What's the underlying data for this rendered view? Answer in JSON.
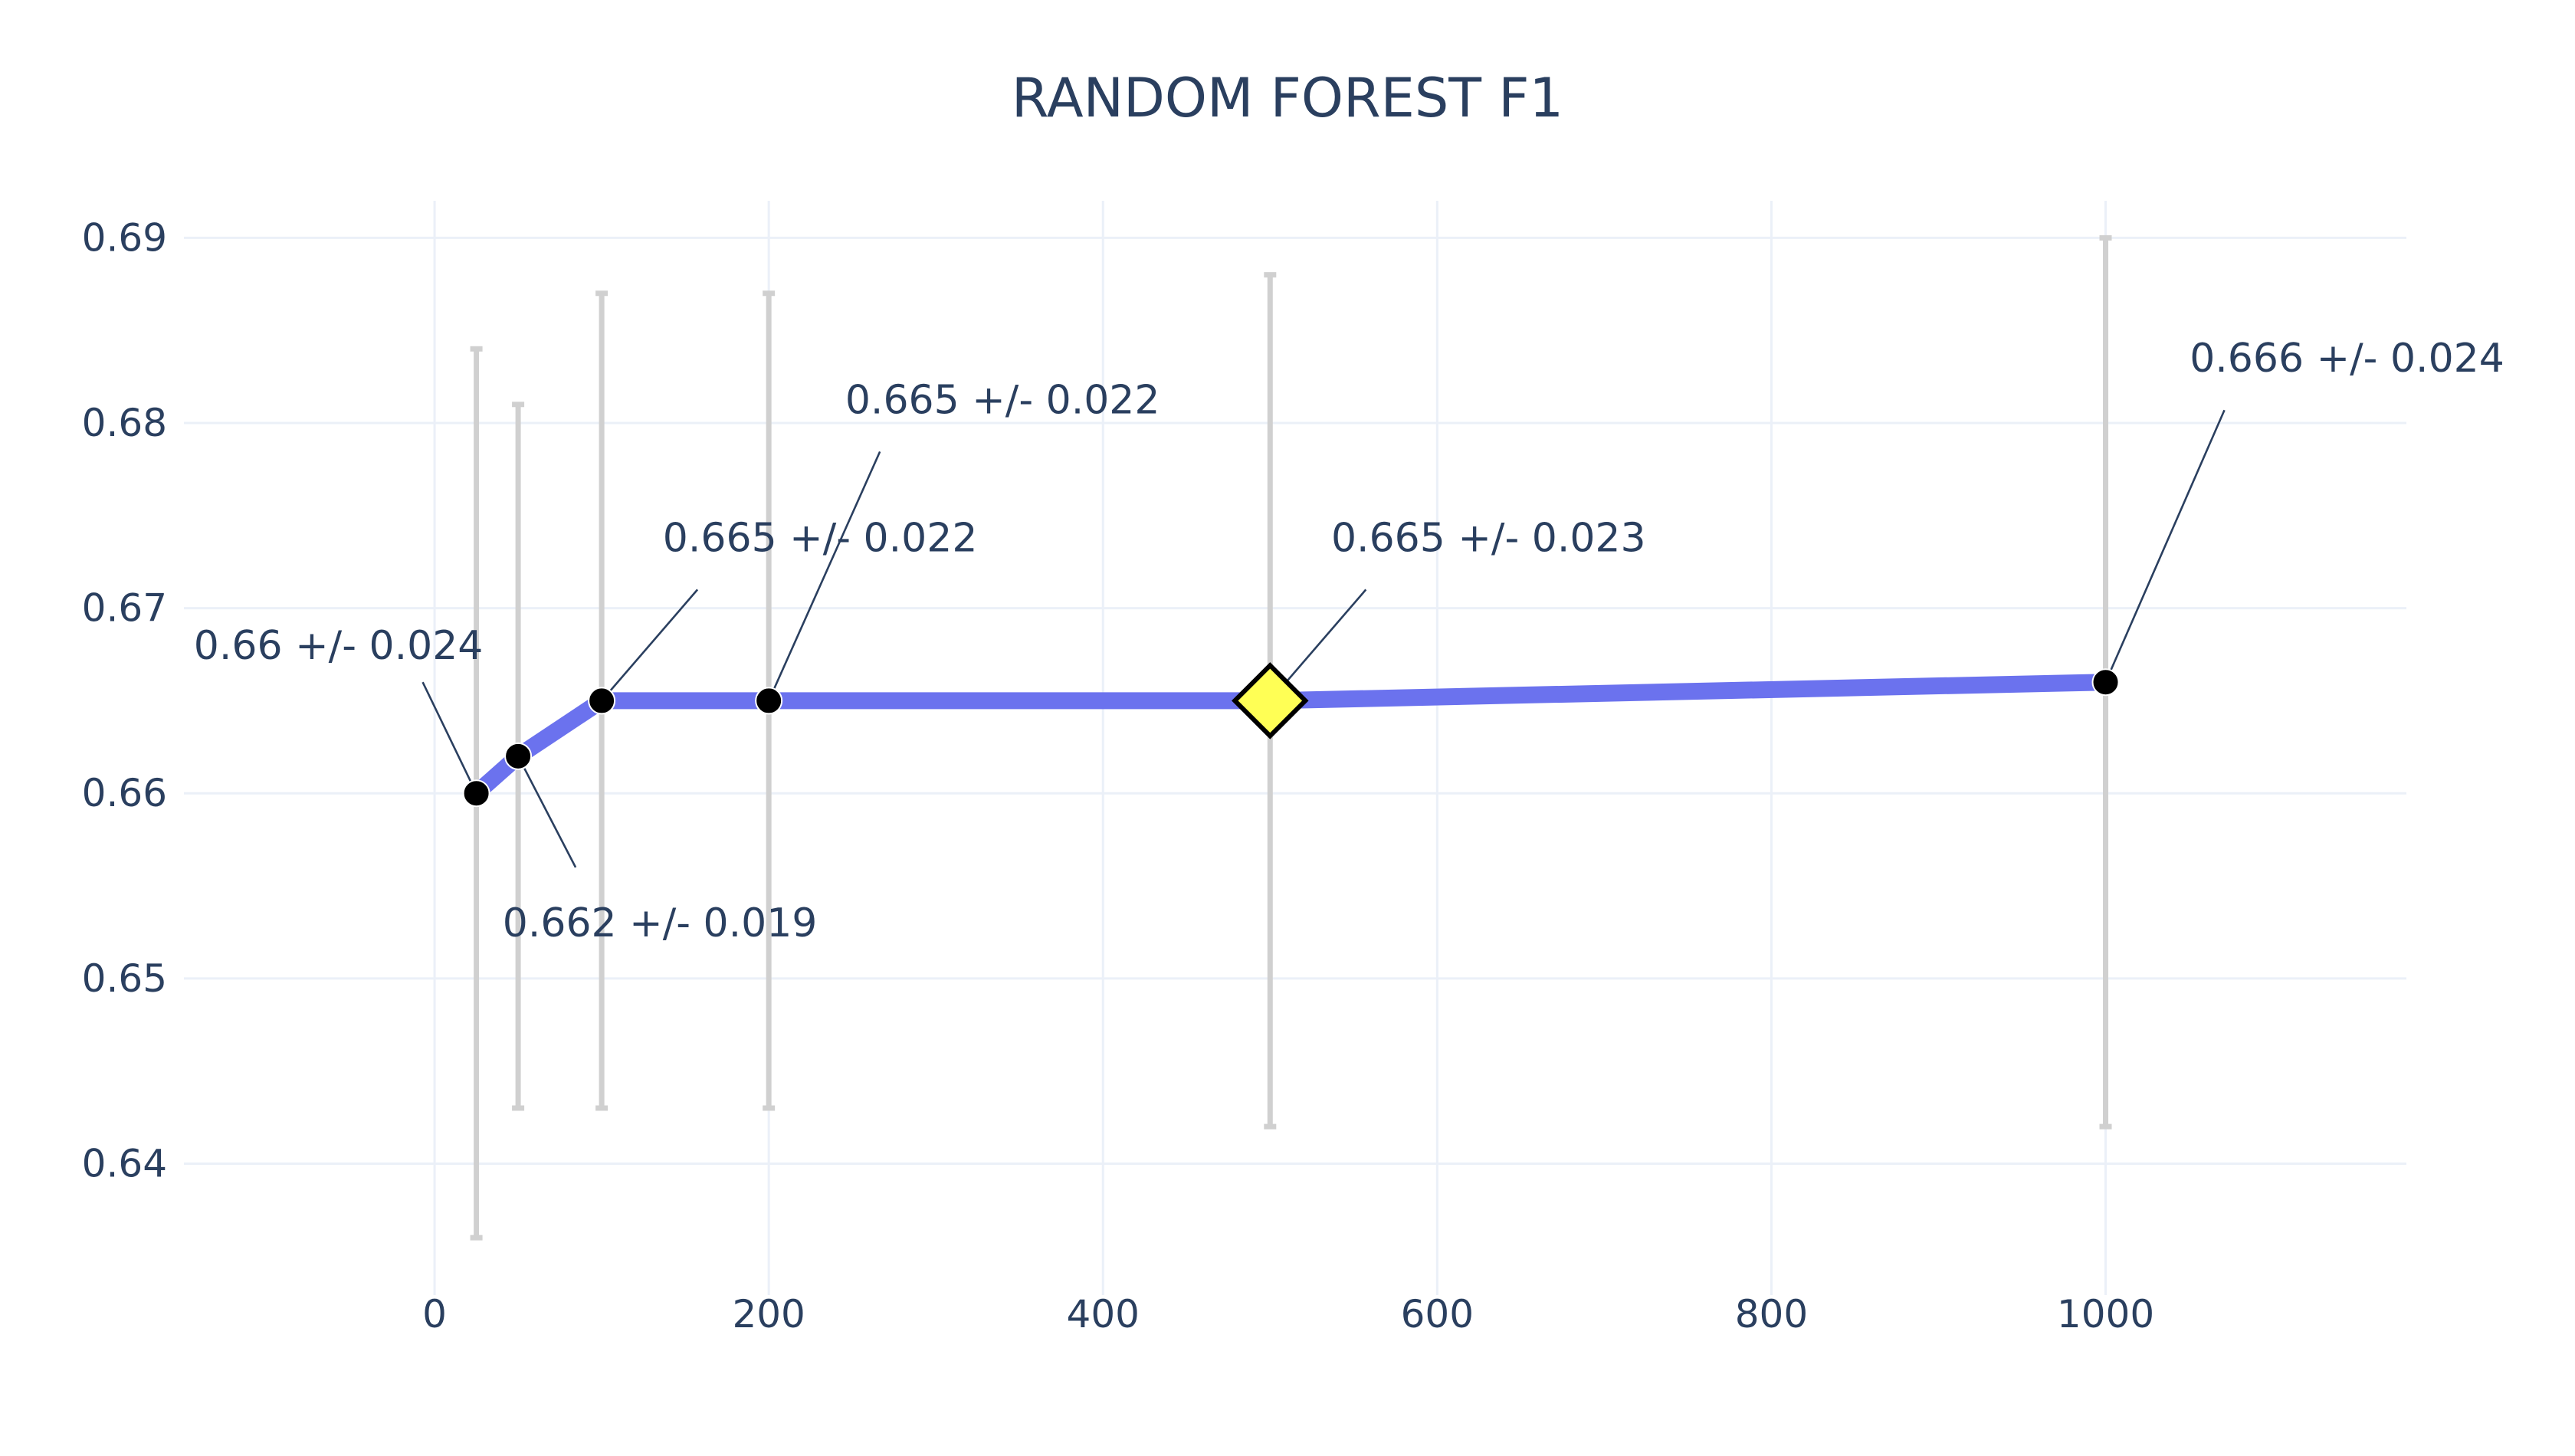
{
  "chart_data": {
    "type": "line",
    "title": "RANDOM FOREST F1",
    "xlabel": "",
    "ylabel": "",
    "xlim": [
      -150,
      1180
    ],
    "ylim": [
      0.6329,
      0.692
    ],
    "x_ticks": [
      0,
      200,
      400,
      600,
      800,
      1000
    ],
    "y_ticks": [
      0.64,
      0.65,
      0.66,
      0.67,
      0.68,
      0.69
    ],
    "grid": true,
    "line_color": "#6b72ee",
    "marker_color": "#000000",
    "highlight_color": "#ffff55",
    "error_bar_color": "#d0d0d0",
    "series": [
      {
        "x": [
          25,
          50,
          100,
          200,
          500,
          1000
        ],
        "y": [
          0.66,
          0.662,
          0.665,
          0.665,
          0.665,
          0.666
        ],
        "error": [
          0.024,
          0.019,
          0.022,
          0.022,
          0.023,
          0.024
        ]
      }
    ],
    "highlight_index": 4,
    "annotations": [
      {
        "text": "0.66 +/- 0.024",
        "x": 25,
        "y": 0.66,
        "position": "upper-left"
      },
      {
        "text": "0.662 +/- 0.019",
        "x": 50,
        "y": 0.662,
        "position": "lower-right"
      },
      {
        "text": "0.665 +/- 0.022",
        "x": 100,
        "y": 0.665,
        "position": "upper-right"
      },
      {
        "text": "0.665 +/- 0.022",
        "x": 200,
        "y": 0.665,
        "position": "upper-right"
      },
      {
        "text": "0.665 +/- 0.023",
        "x": 500,
        "y": 0.665,
        "position": "upper-right"
      },
      {
        "text": "0.666 +/- 0.024",
        "x": 1000,
        "y": 0.666,
        "position": "upper-right"
      }
    ]
  }
}
